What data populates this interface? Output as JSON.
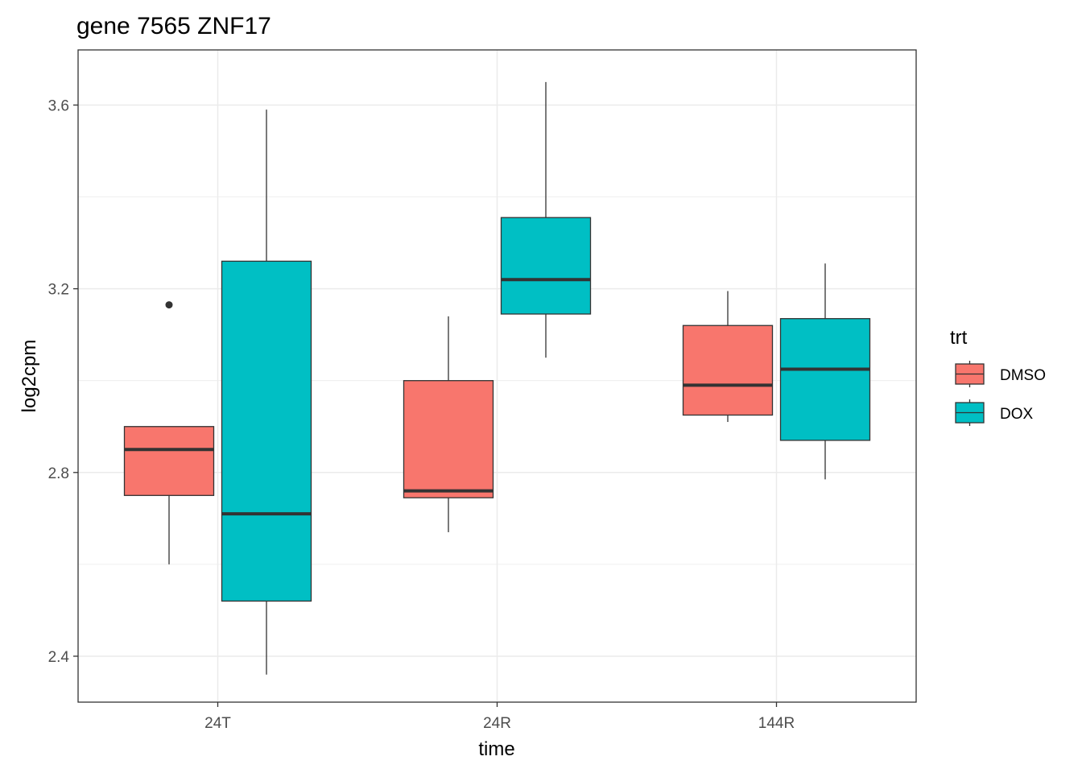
{
  "chart_data": {
    "type": "boxplot",
    "title": "gene 7565 ZNF17",
    "xlabel": "time",
    "ylabel": "log2cpm",
    "categories": [
      "24T",
      "24R",
      "144R"
    ],
    "ylim": [
      2.3,
      3.72
    ],
    "yticks": [
      2.4,
      2.8,
      3.2,
      3.6
    ],
    "grid": true,
    "legend": {
      "title": "trt",
      "position": "right"
    },
    "series": [
      {
        "name": "DMSO",
        "color": "#F8766D",
        "boxes": [
          {
            "category": "24T",
            "lower_whisker": 2.6,
            "q1": 2.75,
            "median": 2.85,
            "q3": 2.9,
            "upper_whisker": 2.9,
            "outliers": [
              3.165
            ]
          },
          {
            "category": "24R",
            "lower_whisker": 2.67,
            "q1": 2.745,
            "median": 2.76,
            "q3": 3.0,
            "upper_whisker": 3.14,
            "outliers": []
          },
          {
            "category": "144R",
            "lower_whisker": 2.91,
            "q1": 2.925,
            "median": 2.99,
            "q3": 3.12,
            "upper_whisker": 3.195,
            "outliers": []
          }
        ]
      },
      {
        "name": "DOX",
        "color": "#00BFC4",
        "boxes": [
          {
            "category": "24T",
            "lower_whisker": 2.36,
            "q1": 2.52,
            "median": 2.71,
            "q3": 3.26,
            "upper_whisker": 3.59,
            "outliers": []
          },
          {
            "category": "24R",
            "lower_whisker": 3.05,
            "q1": 3.145,
            "median": 3.22,
            "q3": 3.355,
            "upper_whisker": 3.65,
            "outliers": []
          },
          {
            "category": "144R",
            "lower_whisker": 2.785,
            "q1": 2.87,
            "median": 3.025,
            "q3": 3.135,
            "upper_whisker": 3.255,
            "outliers": []
          }
        ]
      }
    ]
  }
}
